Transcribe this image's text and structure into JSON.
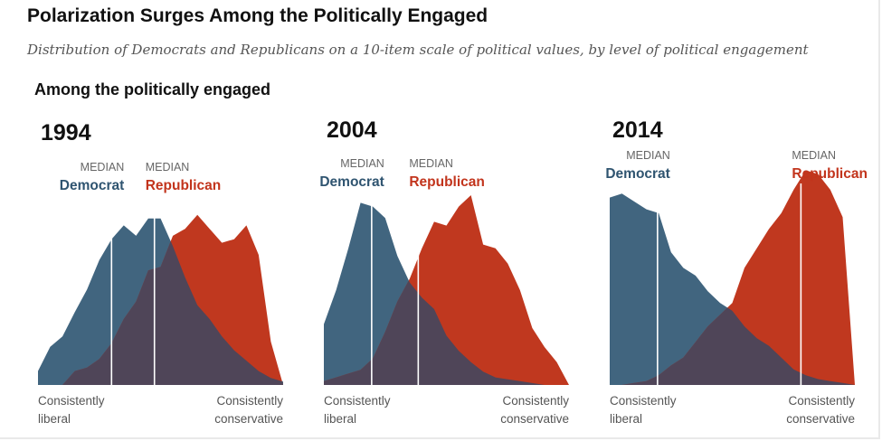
{
  "title": "Polarization Surges Among the Politically Engaged",
  "subtitle": "Distribution of Democrats and Republicans on a 10-item scale of political values, by level of political engagement",
  "section_label": "Among the politically engaged",
  "colors": {
    "democrat": "#41657f",
    "republican": "#c0381f",
    "overlap": "#4f4558",
    "median_line": "#ffffff"
  },
  "labels": {
    "median": "MEDIAN",
    "democrat": "Democrat",
    "republican": "Republican",
    "x_left": [
      "Consistently",
      "liberal"
    ],
    "x_right": [
      "Consistently",
      "conservative"
    ]
  },
  "chart_data": [
    {
      "type": "area",
      "title": "1994",
      "x": [
        0,
        1,
        2,
        3,
        4,
        5,
        6,
        7,
        8,
        9,
        10,
        11,
        12,
        13,
        14,
        15,
        16,
        17,
        18,
        19,
        20
      ],
      "series": [
        {
          "name": "Democrat",
          "values": [
            0.08,
            0.22,
            0.28,
            0.42,
            0.55,
            0.72,
            0.84,
            0.92,
            0.86,
            0.96,
            0.96,
            0.8,
            0.62,
            0.46,
            0.38,
            0.28,
            0.2,
            0.14,
            0.08,
            0.04,
            0.02
          ]
        },
        {
          "name": "Republican",
          "values": [
            0.0,
            0.0,
            0.0,
            0.08,
            0.1,
            0.15,
            0.24,
            0.38,
            0.48,
            0.66,
            0.68,
            0.86,
            0.9,
            0.98,
            0.9,
            0.82,
            0.84,
            0.92,
            0.75,
            0.25,
            0.0
          ]
        }
      ],
      "median_democrat": 6.0,
      "median_republican": 9.5,
      "ylim": [
        0,
        1
      ]
    },
    {
      "type": "area",
      "title": "2004",
      "x": [
        0,
        1,
        2,
        3,
        4,
        5,
        6,
        7,
        8,
        9,
        10,
        11,
        12,
        13,
        14,
        15,
        16,
        17,
        18,
        19,
        20
      ],
      "series": [
        {
          "name": "Democrat",
          "values": [
            0.32,
            0.5,
            0.72,
            0.96,
            0.94,
            0.88,
            0.68,
            0.54,
            0.46,
            0.4,
            0.26,
            0.18,
            0.12,
            0.07,
            0.04,
            0.03,
            0.02,
            0.01,
            0.0,
            0.0,
            0.0
          ]
        },
        {
          "name": "Republican",
          "values": [
            0.02,
            0.04,
            0.06,
            0.08,
            0.14,
            0.28,
            0.44,
            0.56,
            0.72,
            0.86,
            0.84,
            0.94,
            1.0,
            0.74,
            0.72,
            0.64,
            0.5,
            0.3,
            0.2,
            0.12,
            0.0
          ]
        }
      ],
      "median_democrat": 3.9,
      "median_republican": 7.7,
      "ylim": [
        0,
        1
      ]
    },
    {
      "type": "area",
      "title": "2014",
      "x": [
        0,
        1,
        2,
        3,
        4,
        5,
        6,
        7,
        8,
        9,
        10,
        11,
        12,
        13,
        14,
        15,
        16,
        17,
        18,
        19,
        20
      ],
      "series": [
        {
          "name": "Democrat",
          "values": [
            0.96,
            0.98,
            0.94,
            0.9,
            0.88,
            0.68,
            0.6,
            0.56,
            0.48,
            0.42,
            0.38,
            0.3,
            0.24,
            0.2,
            0.14,
            0.08,
            0.05,
            0.03,
            0.02,
            0.01,
            0.0
          ]
        },
        {
          "name": "Republican",
          "values": [
            0.0,
            0.0,
            0.01,
            0.02,
            0.05,
            0.1,
            0.14,
            0.22,
            0.3,
            0.36,
            0.42,
            0.6,
            0.7,
            0.8,
            0.88,
            1.0,
            1.1,
            1.08,
            1.0,
            0.86,
            0.0
          ]
        }
      ],
      "median_democrat": 3.9,
      "median_republican": 15.6,
      "ylim": [
        0,
        1
      ]
    }
  ]
}
